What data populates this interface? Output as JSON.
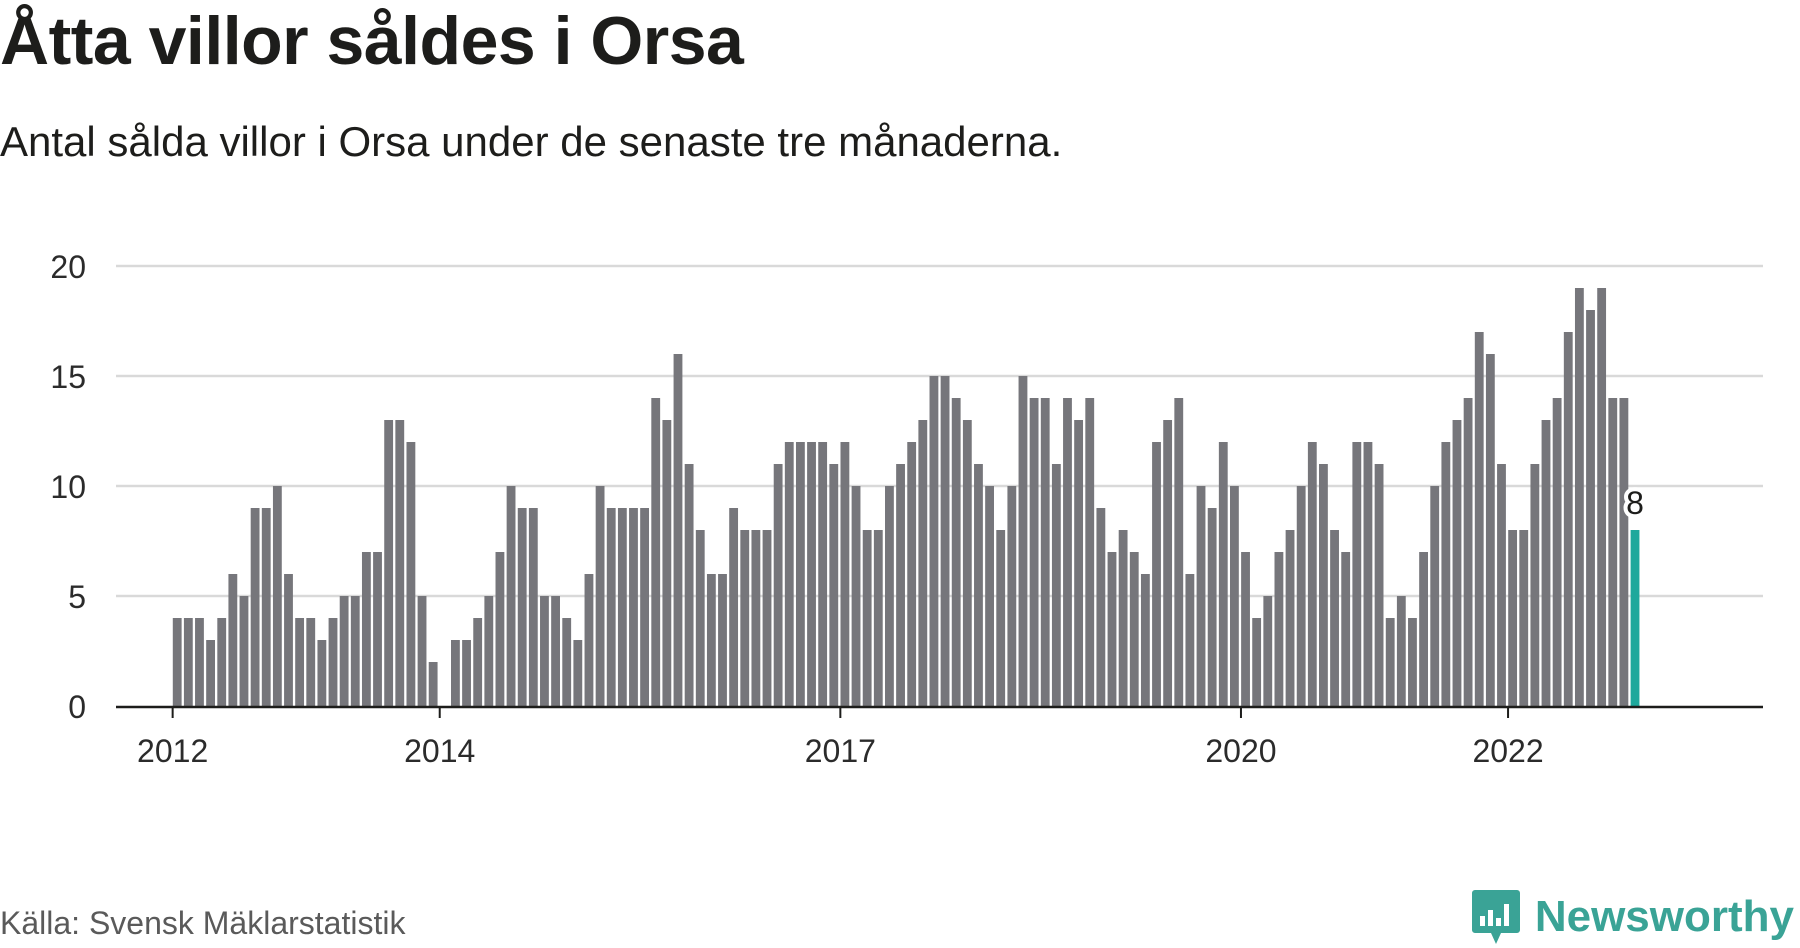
{
  "title": "Åtta villor såldes i Orsa",
  "subtitle": "Antal sålda villor i Orsa under de senaste tre månaderna.",
  "source": "Källa: Svensk Mäklarstatistik",
  "brand": {
    "name": "Newsworthy",
    "icon": "newsworthy-logo-icon"
  },
  "colors": {
    "bar": "#76767b",
    "highlight": "#1ea89c",
    "grid": "#d9d9d9",
    "axis": "#1d1d1b",
    "brand": "#3aa396"
  },
  "chart_data": {
    "type": "bar",
    "title": "Åtta villor såldes i Orsa",
    "xlabel": "",
    "ylabel": "",
    "ylim": [
      0,
      20
    ],
    "y_ticks": [
      0,
      5,
      10,
      15,
      20
    ],
    "grid": true,
    "x_range": [
      "2011-08",
      "2023-11"
    ],
    "x_tick_labels": [
      {
        "label": "2012",
        "month": "2012-01"
      },
      {
        "label": "2014",
        "month": "2014-01"
      },
      {
        "label": "2017",
        "month": "2017-01"
      },
      {
        "label": "2020",
        "month": "2020-01"
      },
      {
        "label": "2022",
        "month": "2022-01"
      }
    ],
    "highlight": {
      "month": "2022-12",
      "label": "8"
    },
    "x": [
      "2012-01",
      "2012-02",
      "2012-03",
      "2012-04",
      "2012-05",
      "2012-06",
      "2012-07",
      "2012-08",
      "2012-09",
      "2012-10",
      "2012-11",
      "2012-12",
      "2013-01",
      "2013-02",
      "2013-03",
      "2013-04",
      "2013-05",
      "2013-06",
      "2013-07",
      "2013-08",
      "2013-09",
      "2013-10",
      "2013-11",
      "2013-12",
      "2014-01",
      "2014-02",
      "2014-03",
      "2014-04",
      "2014-05",
      "2014-06",
      "2014-07",
      "2014-08",
      "2014-09",
      "2014-10",
      "2014-11",
      "2014-12",
      "2015-01",
      "2015-02",
      "2015-03",
      "2015-04",
      "2015-05",
      "2015-06",
      "2015-07",
      "2015-08",
      "2015-09",
      "2015-10",
      "2015-11",
      "2015-12",
      "2016-01",
      "2016-02",
      "2016-03",
      "2016-04",
      "2016-05",
      "2016-06",
      "2016-07",
      "2016-08",
      "2016-09",
      "2016-10",
      "2016-11",
      "2016-12",
      "2017-01",
      "2017-02",
      "2017-03",
      "2017-04",
      "2017-05",
      "2017-06",
      "2017-07",
      "2017-08",
      "2017-09",
      "2017-10",
      "2017-11",
      "2017-12",
      "2018-01",
      "2018-02",
      "2018-03",
      "2018-04",
      "2018-05",
      "2018-06",
      "2018-07",
      "2018-08",
      "2018-09",
      "2018-10",
      "2018-11",
      "2018-12",
      "2019-01",
      "2019-02",
      "2019-03",
      "2019-04",
      "2019-05",
      "2019-06",
      "2019-07",
      "2019-08",
      "2019-09",
      "2019-10",
      "2019-11",
      "2019-12",
      "2020-01",
      "2020-02",
      "2020-03",
      "2020-04",
      "2020-05",
      "2020-06",
      "2020-07",
      "2020-08",
      "2020-09",
      "2020-10",
      "2020-11",
      "2020-12",
      "2021-01",
      "2021-02",
      "2021-03",
      "2021-04",
      "2021-05",
      "2021-06",
      "2021-07",
      "2021-08",
      "2021-09",
      "2021-10",
      "2021-11",
      "2021-12",
      "2022-01",
      "2022-02",
      "2022-03",
      "2022-04",
      "2022-05",
      "2022-06",
      "2022-07",
      "2022-08",
      "2022-09",
      "2022-10",
      "2022-11",
      "2022-12"
    ],
    "values": [
      4,
      4,
      4,
      3,
      4,
      6,
      5,
      9,
      9,
      10,
      6,
      4,
      4,
      3,
      4,
      5,
      5,
      7,
      7,
      13,
      13,
      12,
      5,
      2,
      0,
      3,
      3,
      4,
      5,
      7,
      10,
      9,
      9,
      5,
      5,
      4,
      3,
      6,
      10,
      9,
      9,
      9,
      9,
      14,
      13,
      16,
      11,
      8,
      6,
      6,
      9,
      8,
      8,
      8,
      11,
      12,
      12,
      12,
      12,
      11,
      12,
      10,
      8,
      8,
      10,
      11,
      12,
      13,
      15,
      15,
      14,
      13,
      11,
      10,
      8,
      10,
      15,
      14,
      14,
      11,
      14,
      13,
      14,
      9,
      7,
      8,
      7,
      6,
      12,
      13,
      14,
      6,
      10,
      9,
      12,
      10,
      7,
      4,
      5,
      7,
      8,
      10,
      12,
      11,
      8,
      7,
      12,
      12,
      11,
      4,
      5,
      4,
      7,
      10,
      12,
      13,
      14,
      17,
      16,
      11,
      8,
      8,
      11,
      13,
      14,
      17,
      19,
      18,
      19,
      14,
      14,
      8
    ]
  }
}
